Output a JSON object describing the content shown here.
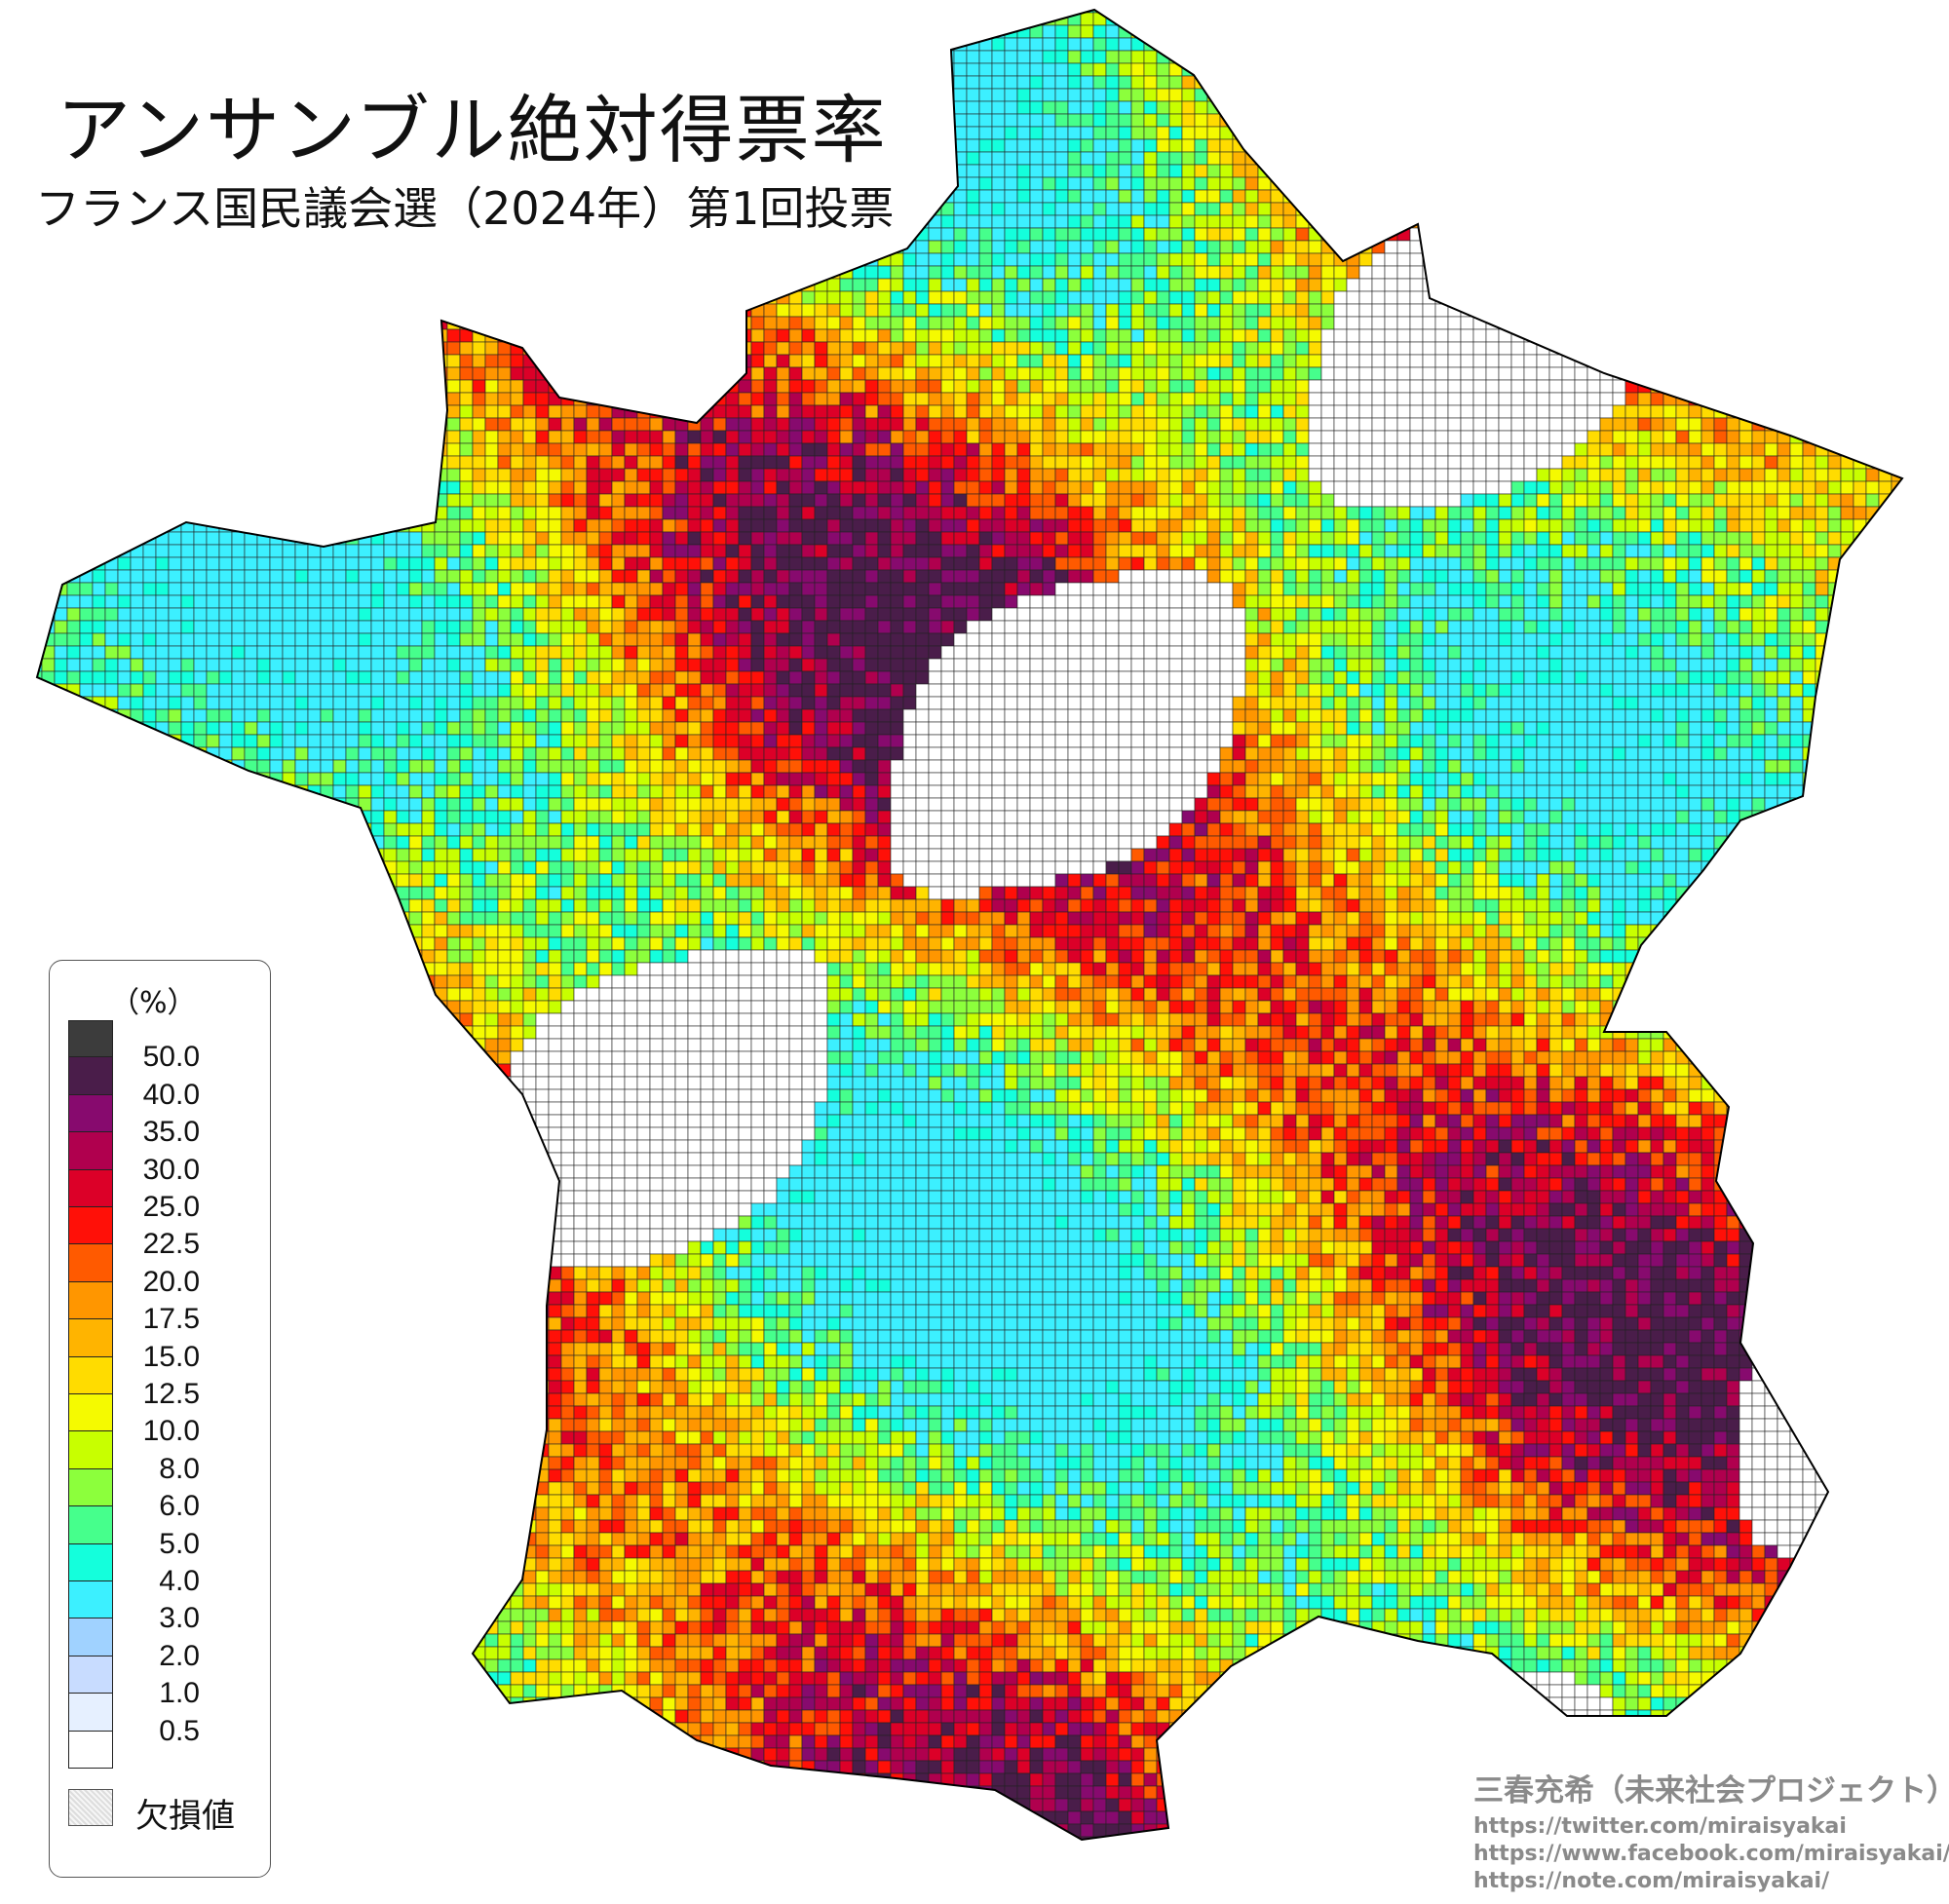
{
  "title": "アンサンブル絶対得票率",
  "subtitle": "フランス国民議会選（2024年）第1回投票",
  "legend": {
    "unit": "（%）",
    "bins": [
      {
        "label": "50.0",
        "color": "#3c3c3c"
      },
      {
        "label": "40.0",
        "color": "#4a1d4a"
      },
      {
        "label": "35.0",
        "color": "#870a6e"
      },
      {
        "label": "30.0",
        "color": "#b0004e"
      },
      {
        "label": "25.0",
        "color": "#dc0028"
      },
      {
        "label": "22.5",
        "color": "#ff1008"
      },
      {
        "label": "20.0",
        "color": "#ff5a00"
      },
      {
        "label": "17.5",
        "color": "#ff9600"
      },
      {
        "label": "15.0",
        "color": "#ffb400"
      },
      {
        "label": "12.5",
        "color": "#ffdc00"
      },
      {
        "label": "10.0",
        "color": "#f5fa00"
      },
      {
        "label": "8.0",
        "color": "#c8ff00"
      },
      {
        "label": "6.0",
        "color": "#8cff3c"
      },
      {
        "label": "5.0",
        "color": "#46ff8c"
      },
      {
        "label": "4.0",
        "color": "#14ffdc"
      },
      {
        "label": "3.0",
        "color": "#3cf0ff"
      },
      {
        "label": "2.0",
        "color": "#a0d2ff"
      },
      {
        "label": "1.0",
        "color": "#c8dcff"
      },
      {
        "label": "0.5",
        "color": "#e6f0ff"
      },
      {
        "label": "",
        "color": "#ffffff"
      }
    ],
    "missing_label": "欠損値"
  },
  "credit": {
    "author": "三春充希（未来社会プロジェクト）",
    "links": [
      "https://twitter.com/miraisyakai",
      "https://www.facebook.com/miraisyakai/",
      "https://note.com/miraisyakai/"
    ]
  }
}
